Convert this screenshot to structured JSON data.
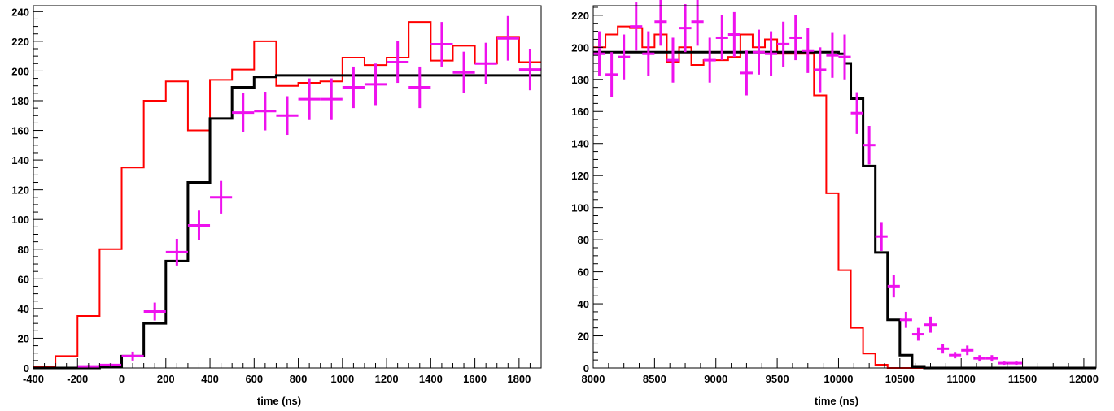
{
  "chart_data": [
    {
      "type": "line",
      "xlabel": "time (ns)",
      "xlim": [
        -400,
        1900
      ],
      "ylim": [
        0,
        244
      ],
      "xticks": [
        -400,
        -200,
        0,
        200,
        400,
        600,
        800,
        1000,
        1200,
        1400,
        1600,
        1800
      ],
      "yticks": [
        0,
        20,
        40,
        60,
        80,
        100,
        120,
        140,
        160,
        180,
        200,
        220,
        240
      ],
      "grid": false,
      "series": [
        {
          "kind": "histogram",
          "color": "#ff0000",
          "edges": [
            -400,
            -300,
            -200,
            -100,
            0,
            100,
            200,
            300,
            400,
            500,
            600,
            700,
            800,
            900,
            1000,
            1100,
            1200,
            1300,
            1400,
            1500,
            1600,
            1700,
            1800,
            1900
          ],
          "values": [
            1,
            8,
            35,
            80,
            135,
            180,
            193,
            160,
            194,
            201,
            220,
            190,
            192,
            193,
            209,
            204,
            209,
            233,
            207,
            217,
            205,
            223,
            206
          ]
        },
        {
          "kind": "histogram",
          "color": "#000000",
          "edges": [
            -400,
            -300,
            -200,
            -100,
            0,
            100,
            200,
            300,
            400,
            500,
            600,
            700,
            800,
            900,
            1000,
            1100,
            1200,
            1300,
            1400,
            1500,
            1600,
            1700,
            1800,
            1900
          ],
          "values": [
            0,
            0,
            0,
            1,
            8,
            30,
            72,
            125,
            168,
            189,
            196,
            197,
            197,
            197,
            197,
            197,
            197,
            197,
            197,
            197,
            197,
            197,
            197
          ]
        },
        {
          "kind": "errorbar",
          "color": "#ee11ee",
          "x": [
            -150,
            -50,
            50,
            150,
            250,
            350,
            450,
            550,
            650,
            750,
            850,
            950,
            1050,
            1150,
            1250,
            1350,
            1450,
            1550,
            1650,
            1750,
            1850
          ],
          "xerr": 50,
          "y": [
            1,
            2,
            8,
            38,
            78,
            96,
            115,
            172,
            173,
            170,
            181,
            181,
            189,
            191,
            206,
            189,
            218,
            199,
            205,
            222,
            201
          ],
          "yerr": [
            1,
            1,
            3,
            6,
            9,
            10,
            11,
            13,
            13,
            13,
            14,
            14,
            14,
            14,
            14,
            14,
            15,
            14,
            14,
            15,
            14
          ]
        }
      ]
    },
    {
      "type": "line",
      "xlabel": "time (ns)",
      "xlim": [
        8000,
        12100
      ],
      "ylim": [
        0,
        226
      ],
      "xticks": [
        8000,
        8500,
        9000,
        9500,
        10000,
        10500,
        11000,
        11500,
        12000
      ],
      "yticks": [
        0,
        20,
        40,
        60,
        80,
        100,
        120,
        140,
        160,
        180,
        200,
        220
      ],
      "grid": false,
      "series": [
        {
          "kind": "histogram",
          "color": "#ff0000",
          "edges": [
            8000,
            8100,
            8200,
            8300,
            8400,
            8500,
            8600,
            8700,
            8800,
            8900,
            9000,
            9100,
            9200,
            9300,
            9400,
            9500,
            9600,
            9700,
            9800,
            9900,
            10000,
            10100,
            10200,
            10300,
            10400,
            12100
          ],
          "values": [
            200,
            208,
            213,
            212,
            200,
            208,
            191,
            200,
            189,
            192,
            192,
            194,
            208,
            200,
            205,
            196,
            196,
            196,
            170,
            109,
            61,
            25,
            9,
            2,
            0
          ]
        },
        {
          "kind": "histogram",
          "color": "#000000",
          "edges": [
            8000,
            8100,
            8200,
            8300,
            8400,
            8500,
            8600,
            8700,
            8800,
            8900,
            9000,
            9100,
            9200,
            9300,
            9400,
            9500,
            9600,
            9700,
            9800,
            9900,
            10000,
            10050,
            10100,
            10150,
            10200,
            10250,
            10300,
            10350,
            10400,
            10450,
            10500,
            10550,
            10600,
            10700,
            12100
          ],
          "values": [
            197,
            197,
            197,
            197,
            197,
            197,
            197,
            197,
            197,
            197,
            197,
            197,
            197,
            197,
            197,
            197,
            197,
            197,
            197,
            197,
            196,
            190,
            168,
            168,
            126,
            126,
            72,
            72,
            30,
            30,
            8,
            8,
            1,
            0
          ]
        },
        {
          "kind": "errorbar",
          "color": "#ee11ee",
          "x": [
            8050,
            8150,
            8250,
            8350,
            8450,
            8550,
            8650,
            8750,
            8850,
            8950,
            9050,
            9150,
            9250,
            9350,
            9450,
            9550,
            9650,
            9750,
            9850,
            9950,
            10050,
            10150,
            10250,
            10350,
            10450,
            10550,
            10650,
            10750,
            10850,
            10950,
            11050,
            11150,
            11250,
            11350,
            11450
          ],
          "xerr": 50,
          "y": [
            196,
            183,
            194,
            213,
            196,
            216,
            192,
            212,
            216,
            192,
            206,
            208,
            184,
            197,
            196,
            202,
            206,
            198,
            186,
            195,
            194,
            159,
            139,
            82,
            51,
            30,
            21,
            27,
            12,
            8,
            11,
            6,
            6,
            3,
            3
          ],
          "yerr": [
            14,
            14,
            14,
            15,
            14,
            15,
            14,
            15,
            15,
            14,
            14,
            14,
            14,
            14,
            14,
            14,
            14,
            14,
            14,
            14,
            14,
            13,
            12,
            9,
            7,
            5,
            4,
            5,
            3,
            2,
            3,
            2,
            2,
            1,
            1
          ]
        }
      ]
    }
  ]
}
